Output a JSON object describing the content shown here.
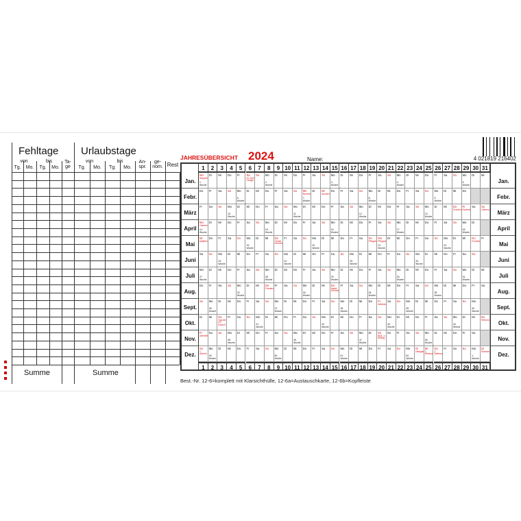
{
  "left": {
    "fehltage_title": "Fehltage",
    "urlaub_title": "Urlaubstage",
    "von": "von",
    "bis": "bis",
    "tg": "Tg.",
    "mo": "Mo.",
    "tage": "Ta-\nge",
    "anspr": "An-\nspr.",
    "genom": "ge-\nnom.",
    "rest": "Rest",
    "summe": "Summe"
  },
  "header": {
    "title": "JAHRESÜBERSICHT",
    "year": "2024",
    "name_label": "Name:",
    "barcode_number": "4 021819 216402"
  },
  "calendar": {
    "year": 2024,
    "months": [
      "Jan.",
      "Febr.",
      "März",
      "April",
      "Mai",
      "Juni",
      "Juli",
      "Aug.",
      "Sept.",
      "Okt.",
      "Nov.",
      "Dez."
    ],
    "weekdays": [
      "Mo",
      "Di",
      "Mi",
      "Do",
      "Fr",
      "Sa",
      "So"
    ],
    "week_suffix": ". Woche",
    "holidays": [
      {
        "m": 1,
        "d": 1,
        "name": "Neujahr"
      },
      {
        "m": 1,
        "d": 6,
        "name": "Hl. Drei Könige"
      },
      {
        "m": 2,
        "d": 12,
        "name": "Rosenmontag"
      },
      {
        "m": 2,
        "d": 14,
        "name": "Aschermittwoch"
      },
      {
        "m": 3,
        "d": 28,
        "name": "Gründonnerstag"
      },
      {
        "m": 3,
        "d": 29,
        "name": "Karfreitag"
      },
      {
        "m": 3,
        "d": 31,
        "name": "Ostersonntag"
      },
      {
        "m": 4,
        "d": 1,
        "name": "Ostermontag"
      },
      {
        "m": 5,
        "d": 1,
        "name": "Maifeiertag"
      },
      {
        "m": 5,
        "d": 9,
        "name": "Christi Himmelfahrt"
      },
      {
        "m": 5,
        "d": 19,
        "name": "Pfingstsonntag"
      },
      {
        "m": 5,
        "d": 20,
        "name": "Pfingstmontag"
      },
      {
        "m": 5,
        "d": 30,
        "name": "Fronleichnam"
      },
      {
        "m": 8,
        "d": 8,
        "name": "Friedensfest"
      },
      {
        "m": 8,
        "d": 15,
        "name": "Mariä Himmelfahrt"
      },
      {
        "m": 9,
        "d": 20,
        "name": "Weltkindertag"
      },
      {
        "m": 10,
        "d": 3,
        "name": "Tag der Dt. Einheit"
      },
      {
        "m": 10,
        "d": 31,
        "name": "Reformationstag"
      },
      {
        "m": 11,
        "d": 1,
        "name": "Allerheiligen"
      },
      {
        "m": 11,
        "d": 20,
        "name": "Buß- u. Bettag"
      },
      {
        "m": 12,
        "d": 1,
        "name": "1. Advent"
      },
      {
        "m": 12,
        "d": 24,
        "name": "Heiligabend"
      },
      {
        "m": 12,
        "d": 25,
        "name": "1. Weihnachtstag"
      },
      {
        "m": 12,
        "d": 26,
        "name": "2. Weihnachtstag"
      },
      {
        "m": 12,
        "d": 31,
        "name": "Silvester"
      }
    ],
    "colors": {
      "holiday": "#d11",
      "unused": "#d9d9d9",
      "title": "#d11"
    }
  },
  "footer": {
    "order_text": "Best.-Nr. 12-6=komplett mit Klarsichthülle, 12-6a=Austauschkarte, 12-6b=Kopfleiste"
  }
}
